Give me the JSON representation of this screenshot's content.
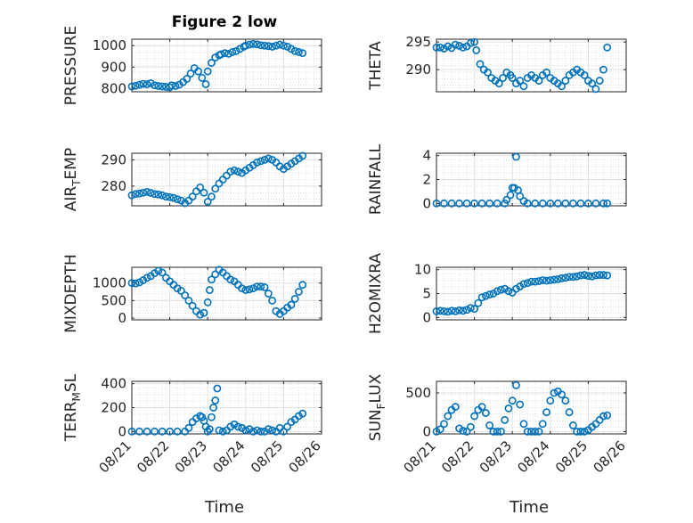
{
  "figure": {
    "title": "Figure 2 low",
    "xlabel": "Time",
    "x_tick_labels": [
      "08/21",
      "08/22",
      "08/23",
      "08/24",
      "08/25",
      "08/26"
    ]
  },
  "chart_data": [
    {
      "type": "scatter",
      "ylabel": "PRESSURE",
      "grid": true,
      "marker_color": "#0072BD",
      "xlim": [
        0,
        5
      ],
      "ylim": [
        785,
        1030
      ],
      "y_ticks": [
        800,
        900,
        1000
      ],
      "x": [
        0.0,
        0.1,
        0.2,
        0.3,
        0.4,
        0.5,
        0.6,
        0.7,
        0.8,
        0.9,
        1.0,
        1.05,
        1.15,
        1.25,
        1.35,
        1.45,
        1.55,
        1.65,
        1.75,
        1.85,
        1.95,
        2.0,
        2.1,
        2.2,
        2.3,
        2.35,
        2.45,
        2.55,
        2.65,
        2.75,
        2.85,
        2.95,
        3.0,
        3.1,
        3.2,
        3.3,
        3.4,
        3.5,
        3.6,
        3.7,
        3.8,
        3.9,
        4.0,
        4.1,
        4.2,
        4.3,
        4.4,
        4.5
      ],
      "y": [
        810,
        813,
        818,
        822,
        820,
        825,
        815,
        812,
        810,
        808,
        806,
        815,
        812,
        818,
        830,
        845,
        870,
        895,
        880,
        850,
        820,
        880,
        920,
        945,
        955,
        960,
        965,
        962,
        970,
        975,
        985,
        995,
        1000,
        1005,
        1008,
        1006,
        1002,
        1000,
        998,
        995,
        1000,
        1005,
        1000,
        995,
        985,
        975,
        970,
        965
      ]
    },
    {
      "type": "scatter",
      "ylabel": "THETA",
      "grid": true,
      "marker_color": "#0072BD",
      "xlim": [
        0,
        5
      ],
      "ylim": [
        286,
        295.5
      ],
      "y_ticks": [
        290,
        295
      ],
      "x": [
        0.0,
        0.1,
        0.2,
        0.3,
        0.4,
        0.5,
        0.6,
        0.7,
        0.8,
        0.9,
        1.0,
        1.05,
        1.15,
        1.25,
        1.35,
        1.45,
        1.55,
        1.65,
        1.75,
        1.85,
        1.95,
        2.0,
        2.1,
        2.2,
        2.3,
        2.4,
        2.5,
        2.6,
        2.7,
        2.8,
        2.9,
        3.0,
        3.1,
        3.2,
        3.3,
        3.4,
        3.5,
        3.6,
        3.7,
        3.8,
        3.9,
        4.0,
        4.1,
        4.2,
        4.3,
        4.4,
        4.5
      ],
      "y": [
        294.0,
        294.0,
        293.8,
        294.2,
        293.9,
        294.5,
        294.3,
        294.0,
        294.2,
        294.8,
        295.0,
        293.5,
        291.0,
        290.0,
        289.5,
        288.5,
        288.0,
        287.5,
        288.5,
        289.5,
        289.0,
        288.5,
        287.5,
        288.0,
        287.0,
        288.5,
        289.0,
        288.5,
        288.0,
        289.0,
        289.5,
        288.5,
        288.0,
        287.5,
        287.0,
        288.0,
        289.0,
        289.5,
        290.0,
        289.5,
        289.0,
        288.0,
        287.5,
        286.5,
        288.0,
        290.0,
        294.0
      ]
    },
    {
      "type": "scatter",
      "ylabel": "AIR",
      "ylabel_sub": "T",
      "ylabel_after": "EMP",
      "grid": true,
      "marker_color": "#0072BD",
      "xlim": [
        0,
        5
      ],
      "ylim": [
        272.5,
        292.5
      ],
      "y_ticks": [
        280,
        290
      ],
      "x": [
        0.0,
        0.1,
        0.2,
        0.3,
        0.4,
        0.5,
        0.6,
        0.7,
        0.8,
        0.9,
        1.0,
        1.1,
        1.2,
        1.3,
        1.4,
        1.5,
        1.6,
        1.7,
        1.8,
        1.9,
        2.0,
        2.1,
        2.2,
        2.3,
        2.4,
        2.5,
        2.6,
        2.7,
        2.8,
        2.9,
        3.0,
        3.1,
        3.2,
        3.3,
        3.4,
        3.5,
        3.6,
        3.7,
        3.8,
        3.9,
        4.0,
        4.1,
        4.2,
        4.3,
        4.4,
        4.5
      ],
      "y": [
        276.5,
        277.0,
        277.2,
        277.5,
        277.8,
        277.4,
        277.0,
        276.8,
        276.5,
        276.0,
        275.8,
        275.5,
        275.0,
        274.5,
        273.5,
        274.5,
        276.0,
        278.0,
        279.5,
        277.5,
        274.0,
        276.0,
        279.0,
        281.0,
        282.5,
        284.0,
        285.5,
        286.0,
        285.5,
        285.0,
        286.0,
        287.0,
        288.0,
        289.0,
        289.5,
        290.0,
        290.5,
        290.0,
        289.0,
        287.5,
        286.5,
        287.5,
        288.5,
        289.5,
        290.5,
        291.5
      ]
    },
    {
      "type": "scatter",
      "ylabel": "RAINFALL",
      "grid": true,
      "marker_color": "#0072BD",
      "xlim": [
        0,
        5
      ],
      "ylim": [
        -0.2,
        4.2
      ],
      "y_ticks": [
        0,
        2,
        4
      ],
      "x": [
        0.0,
        0.2,
        0.4,
        0.6,
        0.8,
        1.0,
        1.2,
        1.4,
        1.6,
        1.8,
        1.85,
        1.95,
        2.0,
        2.05,
        2.1,
        2.15,
        2.2,
        2.3,
        2.4,
        2.6,
        2.8,
        3.0,
        3.2,
        3.4,
        3.6,
        3.8,
        4.0,
        4.2,
        4.4,
        4.5
      ],
      "y": [
        0,
        0,
        0,
        0,
        0,
        0,
        0,
        0,
        0,
        0,
        0.3,
        0.7,
        1.3,
        1.3,
        3.9,
        1.1,
        0.6,
        0.2,
        0,
        0,
        0,
        0,
        0,
        0,
        0,
        0,
        0,
        0,
        0,
        0
      ]
    },
    {
      "type": "scatter",
      "ylabel": "MIXDEPTH",
      "grid": true,
      "marker_color": "#0072BD",
      "xlim": [
        0,
        5
      ],
      "ylim": [
        -50,
        1450
      ],
      "y_ticks": [
        0,
        500,
        1000
      ],
      "x": [
        0.0,
        0.1,
        0.2,
        0.3,
        0.4,
        0.5,
        0.6,
        0.7,
        0.8,
        0.9,
        1.0,
        1.1,
        1.2,
        1.3,
        1.4,
        1.5,
        1.6,
        1.7,
        1.8,
        1.9,
        2.0,
        2.05,
        2.1,
        2.2,
        2.3,
        2.4,
        2.5,
        2.6,
        2.7,
        2.8,
        2.9,
        3.0,
        3.1,
        3.2,
        3.3,
        3.4,
        3.5,
        3.6,
        3.7,
        3.8,
        3.9,
        4.0,
        4.1,
        4.2,
        4.3,
        4.4,
        4.5
      ],
      "y": [
        1000,
        990,
        1020,
        1080,
        1150,
        1200,
        1280,
        1350,
        1300,
        1150,
        1050,
        950,
        850,
        780,
        650,
        500,
        350,
        200,
        100,
        150,
        450,
        800,
        1100,
        1250,
        1380,
        1300,
        1200,
        1100,
        1050,
        950,
        850,
        800,
        820,
        850,
        900,
        900,
        880,
        700,
        500,
        200,
        120,
        200,
        300,
        380,
        550,
        750,
        950
      ]
    },
    {
      "type": "scatter",
      "ylabel": "H2OMIXRA",
      "grid": true,
      "marker_color": "#0072BD",
      "xlim": [
        0,
        5
      ],
      "ylim": [
        -0.5,
        10.5
      ],
      "y_ticks": [
        0,
        5,
        10
      ],
      "x": [
        0.0,
        0.1,
        0.2,
        0.3,
        0.4,
        0.5,
        0.6,
        0.7,
        0.8,
        0.9,
        1.0,
        1.1,
        1.2,
        1.3,
        1.4,
        1.5,
        1.6,
        1.7,
        1.8,
        1.9,
        2.0,
        2.1,
        2.2,
        2.3,
        2.4,
        2.5,
        2.6,
        2.7,
        2.8,
        2.9,
        3.0,
        3.1,
        3.2,
        3.3,
        3.4,
        3.5,
        3.6,
        3.7,
        3.8,
        3.9,
        4.0,
        4.1,
        4.2,
        4.3,
        4.4,
        4.5
      ],
      "y": [
        1.3,
        1.4,
        1.3,
        1.2,
        1.4,
        1.3,
        1.5,
        1.4,
        1.6,
        2.0,
        1.8,
        3.0,
        4.2,
        4.5,
        4.8,
        5.0,
        5.5,
        5.8,
        6.0,
        5.5,
        5.2,
        6.0,
        6.5,
        7.0,
        7.2,
        7.5,
        7.5,
        7.6,
        7.8,
        7.7,
        7.8,
        7.9,
        8.0,
        8.2,
        8.3,
        8.5,
        8.5,
        8.6,
        8.8,
        8.9,
        8.7,
        8.6,
        8.8,
        8.9,
        8.9,
        8.8
      ]
    },
    {
      "type": "scatter",
      "ylabel": "TERR",
      "ylabel_sub": "M",
      "ylabel_after": "SL",
      "grid": true,
      "marker_color": "#0072BD",
      "xlim": [
        0,
        5
      ],
      "ylim": [
        -20,
        420
      ],
      "y_ticks": [
        0,
        200,
        400
      ],
      "x": [
        0.0,
        0.2,
        0.4,
        0.6,
        0.8,
        1.0,
        1.2,
        1.4,
        1.5,
        1.6,
        1.7,
        1.8,
        1.85,
        1.9,
        1.95,
        2.0,
        2.05,
        2.1,
        2.15,
        2.2,
        2.25,
        2.3,
        2.4,
        2.5,
        2.6,
        2.7,
        2.8,
        2.9,
        3.0,
        3.1,
        3.2,
        3.3,
        3.4,
        3.5,
        3.6,
        3.7,
        3.8,
        3.9,
        4.0,
        4.1,
        4.2,
        4.3,
        4.4,
        4.5
      ],
      "y": [
        0,
        0,
        0,
        0,
        0,
        0,
        0,
        0,
        30,
        80,
        110,
        130,
        120,
        90,
        40,
        0,
        20,
        120,
        200,
        260,
        360,
        10,
        0,
        10,
        40,
        60,
        40,
        30,
        10,
        20,
        0,
        10,
        0,
        0,
        20,
        10,
        0,
        30,
        0,
        40,
        80,
        100,
        130,
        150
      ]
    },
    {
      "type": "scatter",
      "ylabel": "SUN",
      "ylabel_sub": "F",
      "ylabel_after": "LUX",
      "grid": true,
      "marker_color": "#0072BD",
      "xlim": [
        0,
        5
      ],
      "ylim": [
        -30,
        650
      ],
      "y_ticks": [
        0,
        500
      ],
      "x": [
        0.0,
        0.1,
        0.2,
        0.3,
        0.4,
        0.5,
        0.6,
        0.7,
        0.8,
        0.9,
        1.0,
        1.1,
        1.2,
        1.3,
        1.4,
        1.5,
        1.6,
        1.7,
        1.8,
        1.9,
        2.0,
        2.1,
        2.2,
        2.3,
        2.4,
        2.5,
        2.6,
        2.7,
        2.8,
        2.9,
        3.0,
        3.1,
        3.2,
        3.3,
        3.4,
        3.5,
        3.6,
        3.7,
        3.8,
        3.9,
        4.0,
        4.1,
        4.2,
        4.3,
        4.4,
        4.5
      ],
      "y": [
        0,
        30,
        100,
        200,
        280,
        320,
        40,
        10,
        0,
        60,
        200,
        280,
        320,
        240,
        80,
        0,
        0,
        0,
        150,
        300,
        400,
        600,
        350,
        100,
        0,
        0,
        0,
        0,
        100,
        250,
        400,
        500,
        520,
        480,
        400,
        250,
        80,
        0,
        0,
        0,
        20,
        60,
        100,
        150,
        200,
        210
      ]
    }
  ]
}
